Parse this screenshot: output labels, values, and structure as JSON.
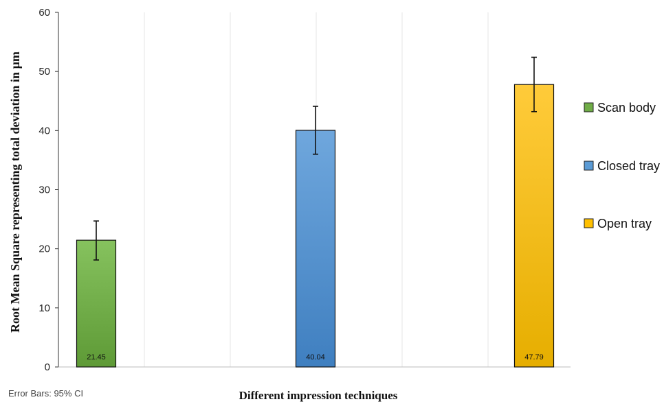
{
  "chart_data": {
    "type": "bar",
    "categories": [
      "Scan body",
      "Closed tray",
      "Open tray"
    ],
    "values": [
      21.45,
      40.04,
      47.79
    ],
    "data_labels": [
      "21.45",
      "40.04",
      "47.79"
    ],
    "error_bars": [
      {
        "low": 18.1,
        "high": 24.7
      },
      {
        "low": 36.0,
        "high": 44.1
      },
      {
        "low": 43.2,
        "high": 52.4
      }
    ],
    "colors": [
      "#70AD47",
      "#5B9BD5",
      "#FFC000"
    ],
    "xlabel": "Different impression techniques",
    "ylabel": "Root Mean Square representing total deviation in µm",
    "ylim": [
      0,
      60
    ],
    "yticks": [
      0,
      10,
      20,
      30,
      40,
      50,
      60
    ],
    "ytick_labels": [
      "0",
      "10",
      "20",
      "30",
      "40",
      "50",
      "60"
    ],
    "grid": "vertical",
    "legend": {
      "position": "right",
      "entries": [
        "Scan body",
        "Closed tray",
        "Open tray"
      ]
    },
    "note": "Error Bars: 95% CI"
  }
}
